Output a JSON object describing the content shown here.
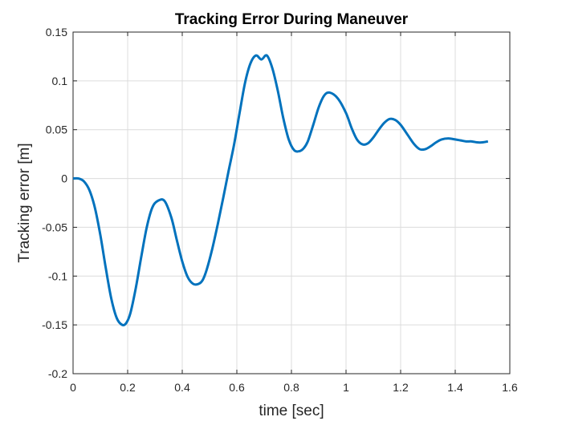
{
  "chart_data": {
    "type": "line",
    "title": "Tracking Error During Maneuver",
    "xlabel": "time [sec]",
    "ylabel": "Tracking error [m]",
    "xlim": [
      0,
      1.6
    ],
    "ylim": [
      -0.2,
      0.15
    ],
    "xticks": [
      0,
      0.2,
      0.4,
      0.6,
      0.8,
      1,
      1.2,
      1.4,
      1.6
    ],
    "xtick_labels": [
      "0",
      "0.2",
      "0.4",
      "0.6",
      "0.8",
      "1",
      "1.2",
      "1.4",
      "1.6"
    ],
    "yticks": [
      -0.2,
      -0.15,
      -0.1,
      -0.05,
      0,
      0.05,
      0.1,
      0.15
    ],
    "ytick_labels": [
      "-0.2",
      "-0.15",
      "-0.1",
      "-0.05",
      "0",
      "0.05",
      "0.1",
      "0.15"
    ],
    "grid": true,
    "legend": "none",
    "series": [
      {
        "color": "#0072BD",
        "x": [
          0,
          0.02,
          0.04,
          0.06,
          0.08,
          0.1,
          0.12,
          0.14,
          0.16,
          0.18,
          0.195,
          0.21,
          0.23,
          0.25,
          0.27,
          0.29,
          0.31,
          0.335,
          0.36,
          0.38,
          0.4,
          0.42,
          0.44,
          0.46,
          0.475,
          0.49,
          0.51,
          0.53,
          0.55,
          0.57,
          0.59,
          0.61,
          0.63,
          0.65,
          0.67,
          0.69,
          0.71,
          0.73,
          0.75,
          0.77,
          0.79,
          0.81,
          0.83,
          0.845,
          0.86,
          0.88,
          0.9,
          0.92,
          0.94,
          0.97,
          1.0,
          1.02,
          1.04,
          1.06,
          1.08,
          1.1,
          1.12,
          1.14,
          1.16,
          1.18,
          1.2,
          1.225,
          1.25,
          1.27,
          1.29,
          1.31,
          1.33,
          1.35,
          1.375,
          1.4,
          1.42,
          1.44,
          1.46,
          1.48,
          1.5,
          1.52
        ],
        "y": [
          0,
          0,
          -0.003,
          -0.012,
          -0.03,
          -0.058,
          -0.092,
          -0.123,
          -0.143,
          -0.15,
          -0.148,
          -0.138,
          -0.112,
          -0.08,
          -0.05,
          -0.03,
          -0.023,
          -0.023,
          -0.04,
          -0.063,
          -0.085,
          -0.101,
          -0.108,
          -0.108,
          -0.104,
          -0.093,
          -0.072,
          -0.047,
          -0.02,
          0.008,
          0.035,
          0.067,
          0.098,
          0.118,
          0.126,
          0.122,
          0.126,
          0.113,
          0.09,
          0.062,
          0.04,
          0.029,
          0.028,
          0.031,
          0.038,
          0.055,
          0.073,
          0.085,
          0.088,
          0.082,
          0.067,
          0.052,
          0.04,
          0.035,
          0.036,
          0.042,
          0.05,
          0.057,
          0.061,
          0.06,
          0.055,
          0.045,
          0.035,
          0.03,
          0.03,
          0.033,
          0.037,
          0.04,
          0.041,
          0.04,
          0.039,
          0.038,
          0.038,
          0.037,
          0.037,
          0.038
        ]
      }
    ]
  }
}
